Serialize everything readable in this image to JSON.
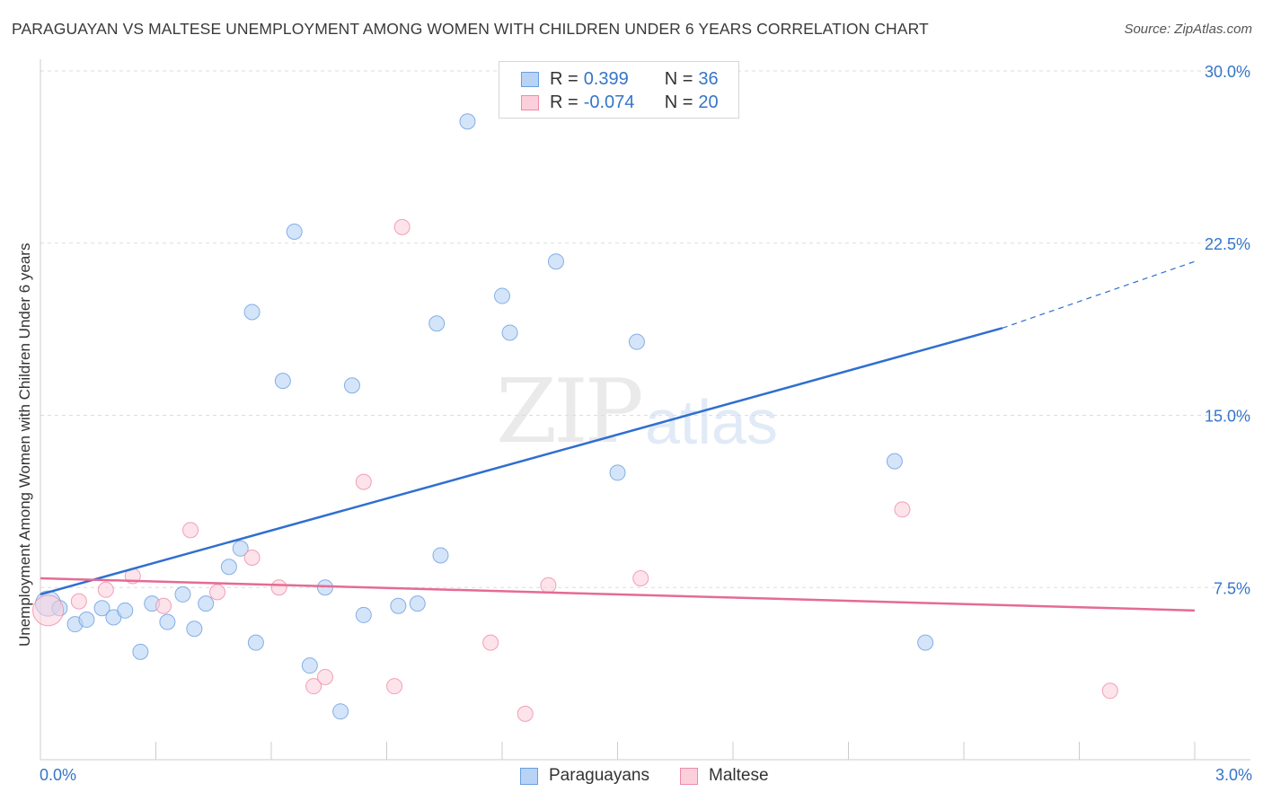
{
  "header": {
    "title": "PARAGUAYAN VS MALTESE UNEMPLOYMENT AMONG WOMEN WITH CHILDREN UNDER 6 YEARS CORRELATION CHART",
    "source": "Source: ZipAtlas.com"
  },
  "watermark": {
    "zip": "ZIP",
    "atlas": "atlas"
  },
  "legend": {
    "rows": [
      {
        "r_label": "R =",
        "r_value": "0.399",
        "n_label": "N =",
        "n_value": "36",
        "color": "#b8d3f5",
        "border": "#6a9ee0"
      },
      {
        "r_label": "R =",
        "r_value": "-0.074",
        "n_label": "N =",
        "n_value": "20",
        "color": "#fbd0dc",
        "border": "#f08aaa"
      }
    ]
  },
  "bottom_legend": [
    {
      "label": "Paraguayans",
      "color": "#b8d3f5",
      "border": "#6a9ee0"
    },
    {
      "label": "Maltese",
      "color": "#fbd0dc",
      "border": "#f08aaa"
    }
  ],
  "chart_data": {
    "type": "scatter",
    "title": "PARAGUAYAN VS MALTESE UNEMPLOYMENT AMONG WOMEN WITH CHILDREN UNDER 6 YEARS CORRELATION CHART",
    "xlabel": "",
    "ylabel": "Unemployment Among Women with Children Under 6 years",
    "xlim": [
      0.0,
      3.0
    ],
    "ylim": [
      0.0,
      30.0
    ],
    "x_tick_labels": [
      "0.0%",
      "3.0%"
    ],
    "y_ticks": [
      7.5,
      15.0,
      22.5,
      30.0
    ],
    "y_tick_labels": [
      "7.5%",
      "15.0%",
      "22.5%",
      "30.0%"
    ],
    "grid": true,
    "series": [
      {
        "name": "Paraguayans",
        "color": "#6a9ee0",
        "fill": "#b8d3f5",
        "points": [
          [
            0.02,
            6.8
          ],
          [
            0.05,
            6.6
          ],
          [
            0.09,
            5.9
          ],
          [
            0.12,
            6.1
          ],
          [
            0.16,
            6.6
          ],
          [
            0.19,
            6.2
          ],
          [
            0.22,
            6.5
          ],
          [
            0.26,
            4.7
          ],
          [
            0.29,
            6.8
          ],
          [
            0.33,
            6.0
          ],
          [
            0.37,
            7.2
          ],
          [
            0.4,
            5.7
          ],
          [
            0.43,
            6.8
          ],
          [
            0.49,
            8.4
          ],
          [
            0.52,
            9.2
          ],
          [
            0.55,
            19.5
          ],
          [
            0.56,
            5.1
          ],
          [
            0.63,
            16.5
          ],
          [
            0.66,
            23.0
          ],
          [
            0.7,
            4.1
          ],
          [
            0.74,
            7.5
          ],
          [
            0.81,
            16.3
          ],
          [
            0.78,
            2.1
          ],
          [
            0.84,
            6.3
          ],
          [
            0.93,
            6.7
          ],
          [
            0.98,
            6.8
          ],
          [
            1.03,
            19.0
          ],
          [
            1.04,
            8.9
          ],
          [
            1.11,
            27.8
          ],
          [
            1.2,
            20.2
          ],
          [
            1.22,
            18.6
          ],
          [
            1.34,
            21.7
          ],
          [
            1.5,
            12.5
          ],
          [
            1.55,
            18.2
          ],
          [
            2.22,
            13.0
          ],
          [
            2.3,
            5.1
          ]
        ],
        "trend": {
          "x0": 0.0,
          "y0": 7.2,
          "x1": 2.5,
          "y1": 18.8,
          "dashed_to_x": 3.0,
          "dashed_to_y": 21.7
        }
      },
      {
        "name": "Maltese",
        "color": "#f08aaa",
        "fill": "#fbd0dc",
        "points": [
          [
            0.02,
            6.5
          ],
          [
            0.1,
            6.9
          ],
          [
            0.17,
            7.4
          ],
          [
            0.24,
            8.0
          ],
          [
            0.32,
            6.7
          ],
          [
            0.39,
            10.0
          ],
          [
            0.46,
            7.3
          ],
          [
            0.55,
            8.8
          ],
          [
            0.62,
            7.5
          ],
          [
            0.71,
            3.2
          ],
          [
            0.74,
            3.6
          ],
          [
            0.84,
            12.1
          ],
          [
            0.92,
            3.2
          ],
          [
            0.94,
            23.2
          ],
          [
            1.17,
            5.1
          ],
          [
            1.26,
            2.0
          ],
          [
            1.32,
            7.6
          ],
          [
            1.56,
            7.9
          ],
          [
            2.24,
            10.9
          ],
          [
            2.78,
            3.0
          ]
        ],
        "trend": {
          "x0": 0.0,
          "y0": 7.9,
          "x1": 3.0,
          "y1": 6.5
        }
      }
    ]
  }
}
